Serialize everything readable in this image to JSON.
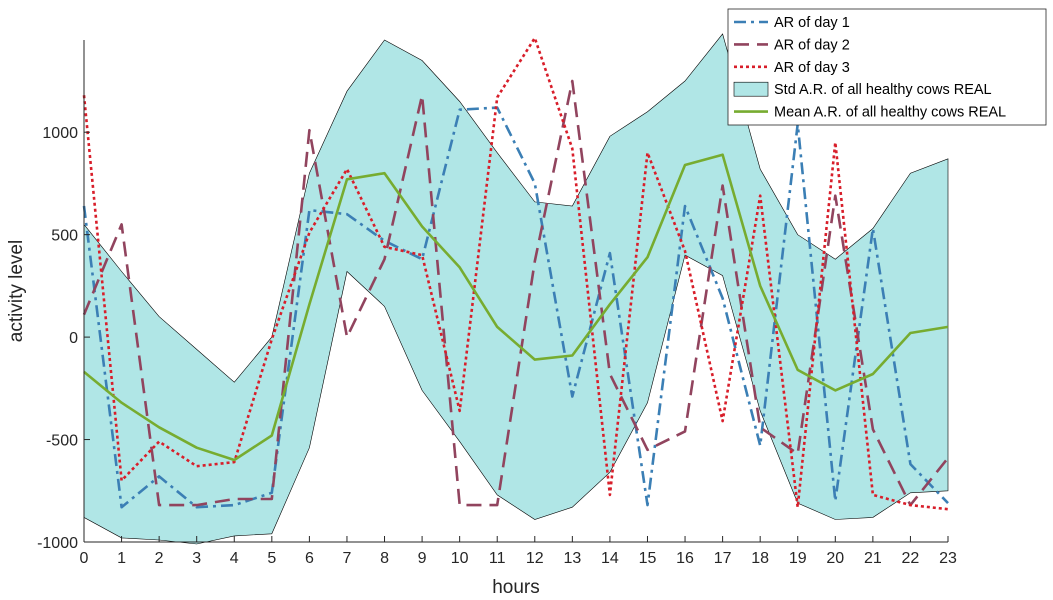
{
  "chart_data": {
    "type": "line",
    "xlabel": "hours",
    "ylabel": "activity level",
    "xlim": [
      0,
      23
    ],
    "ylim": [
      -1000,
      1450
    ],
    "x_ticks": [
      "0",
      "1",
      "2",
      "3",
      "4",
      "5",
      "6",
      "7",
      "8",
      "9",
      "10",
      "11",
      "12",
      "13",
      "14",
      "15",
      "16",
      "17",
      "18",
      "19",
      "20",
      "21",
      "22",
      "23"
    ],
    "y_ticks": [
      "-1000",
      "-500",
      "0",
      "500",
      "1000"
    ],
    "y_tick_values": [
      -1000,
      -500,
      0,
      500,
      1000
    ],
    "grid": false,
    "legend_position": "top-right",
    "band": {
      "name": "Std A.R. of all healthy cows REAL",
      "color": "#b0e6e6",
      "x": [
        0,
        1,
        2,
        3,
        4,
        5,
        6,
        7,
        8,
        9,
        10,
        11,
        12,
        13,
        14,
        15,
        16,
        17,
        18,
        19,
        20,
        21,
        22,
        23
      ],
      "upper": [
        550,
        320,
        100,
        -60,
        -220,
        0,
        800,
        1200,
        1450,
        1350,
        1150,
        900,
        660,
        640,
        980,
        1100,
        1250,
        1480,
        820,
        500,
        380,
        530,
        800,
        870
      ],
      "lower": [
        -880,
        -980,
        -990,
        -1010,
        -970,
        -960,
        -540,
        320,
        150,
        -260,
        -510,
        -770,
        -890,
        -830,
        -660,
        -320,
        400,
        300,
        -360,
        -810,
        -890,
        -880,
        -760,
        -750
      ]
    },
    "series": [
      {
        "name": "AR of day 1",
        "color": "#3b7fb5",
        "dash": "12,5,3,5",
        "points": [
          [
            0,
            640
          ],
          [
            1,
            -830
          ],
          [
            2,
            -680
          ],
          [
            3,
            -830
          ],
          [
            4,
            -820
          ],
          [
            5,
            -760
          ],
          [
            6,
            620
          ],
          [
            7,
            600
          ],
          [
            8,
            470
          ],
          [
            9,
            380
          ],
          [
            10,
            1110
          ],
          [
            11,
            1120
          ],
          [
            12,
            750
          ],
          [
            13,
            -290
          ],
          [
            14,
            410
          ],
          [
            15,
            -820
          ],
          [
            16,
            640
          ],
          [
            17,
            190
          ],
          [
            18,
            -530
          ],
          [
            19,
            1040
          ],
          [
            20,
            -800
          ],
          [
            21,
            530
          ],
          [
            22,
            -620
          ],
          [
            23,
            -810
          ]
        ]
      },
      {
        "name": "AR of day 2",
        "color": "#91445e",
        "dash": "15,8",
        "points": [
          [
            0,
            110
          ],
          [
            1,
            550
          ],
          [
            2,
            -820
          ],
          [
            3,
            -820
          ],
          [
            4,
            -790
          ],
          [
            5,
            -790
          ],
          [
            6,
            1010
          ],
          [
            7,
            0
          ],
          [
            8,
            380
          ],
          [
            9,
            1180
          ],
          [
            10,
            -820
          ],
          [
            11,
            -820
          ],
          [
            12,
            370
          ],
          [
            13,
            1250
          ],
          [
            14,
            -180
          ],
          [
            15,
            -550
          ],
          [
            16,
            -460
          ],
          [
            17,
            740
          ],
          [
            18,
            -440
          ],
          [
            19,
            -570
          ],
          [
            20,
            690
          ],
          [
            21,
            -450
          ],
          [
            22,
            -820
          ],
          [
            23,
            -590
          ]
        ]
      },
      {
        "name": "AR of day 3",
        "color": "#d81e2a",
        "dash": "3,3",
        "points": [
          [
            0,
            1180
          ],
          [
            1,
            -700
          ],
          [
            2,
            -510
          ],
          [
            3,
            -630
          ],
          [
            4,
            -610
          ],
          [
            5,
            -10
          ],
          [
            6,
            510
          ],
          [
            7,
            820
          ],
          [
            8,
            440
          ],
          [
            9,
            400
          ],
          [
            10,
            -360
          ],
          [
            11,
            1170
          ],
          [
            12,
            1460
          ],
          [
            13,
            920
          ],
          [
            14,
            -770
          ],
          [
            15,
            900
          ],
          [
            16,
            420
          ],
          [
            17,
            -410
          ],
          [
            18,
            690
          ],
          [
            19,
            -830
          ],
          [
            20,
            950
          ],
          [
            21,
            -770
          ],
          [
            22,
            -820
          ],
          [
            23,
            -840
          ]
        ]
      },
      {
        "name": "Mean A.R. of all healthy cows REAL",
        "color": "#77ac30",
        "dash": "",
        "points": [
          [
            0,
            -170
          ],
          [
            1,
            -320
          ],
          [
            2,
            -440
          ],
          [
            3,
            -540
          ],
          [
            4,
            -600
          ],
          [
            5,
            -480
          ],
          [
            6,
            160
          ],
          [
            7,
            770
          ],
          [
            8,
            800
          ],
          [
            9,
            540
          ],
          [
            10,
            340
          ],
          [
            11,
            50
          ],
          [
            12,
            -110
          ],
          [
            13,
            -90
          ],
          [
            14,
            160
          ],
          [
            15,
            390
          ],
          [
            16,
            840
          ],
          [
            17,
            890
          ],
          [
            18,
            250
          ],
          [
            19,
            -160
          ],
          [
            20,
            -260
          ],
          [
            21,
            -180
          ],
          [
            22,
            20
          ],
          [
            23,
            50
          ]
        ]
      }
    ]
  }
}
